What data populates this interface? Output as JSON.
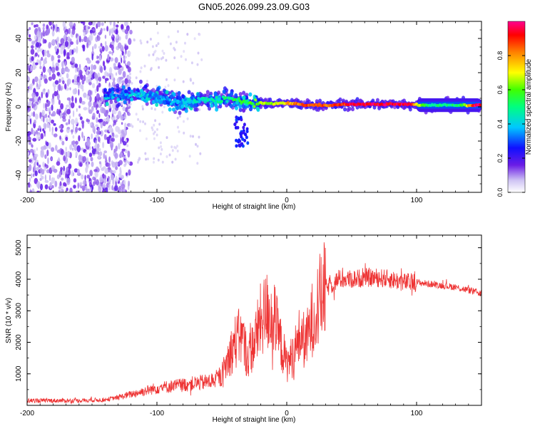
{
  "title": "GN05.2026.099.23.09.G03",
  "chart_data": [
    {
      "type": "heatmap",
      "name": "spectrogram",
      "xlabel": "Height of straight line (km)",
      "ylabel": "Frequency (Hz)",
      "xlim": [
        -200,
        150
      ],
      "ylim": [
        -50,
        50
      ],
      "xticks": [
        -200,
        -100,
        0,
        100
      ],
      "yticks": [
        -40,
        -20,
        0,
        20,
        40
      ],
      "colorbar": {
        "label": "Normalized spectral amplitude",
        "range": [
          0,
          1
        ],
        "ticks": [
          "0.0",
          "0.2",
          "0.4",
          "0.6",
          "0.8"
        ],
        "tick_values": [
          0.0,
          0.2,
          0.4,
          0.6,
          0.8
        ]
      },
      "ridge": [
        {
          "x": -135,
          "f": 7,
          "amp": 0.3
        },
        {
          "x": -125,
          "f": 7,
          "amp": 0.35
        },
        {
          "x": -115,
          "f": 7,
          "amp": 0.4
        },
        {
          "x": -105,
          "f": 6,
          "amp": 0.35
        },
        {
          "x": -95,
          "f": 5,
          "amp": 0.35
        },
        {
          "x": -85,
          "f": 3,
          "amp": 0.35
        },
        {
          "x": -75,
          "f": 3,
          "amp": 0.4
        },
        {
          "x": -65,
          "f": 4,
          "amp": 0.45
        },
        {
          "x": -55,
          "f": 4,
          "amp": 0.45
        },
        {
          "x": -45,
          "f": 5,
          "amp": 0.5
        },
        {
          "x": -35,
          "f": 3,
          "amp": 0.55
        },
        {
          "x": -25,
          "f": 2,
          "amp": 0.6
        },
        {
          "x": -15,
          "f": 2,
          "amp": 0.65
        },
        {
          "x": -5,
          "f": 2,
          "amp": 0.7
        },
        {
          "x": 5,
          "f": 2,
          "amp": 0.8
        },
        {
          "x": 15,
          "f": 1,
          "amp": 0.85
        },
        {
          "x": 25,
          "f": 1,
          "amp": 0.85
        },
        {
          "x": 35,
          "f": 1,
          "amp": 0.85
        },
        {
          "x": 45,
          "f": 1.5,
          "amp": 0.9
        },
        {
          "x": 55,
          "f": 1.5,
          "amp": 0.95
        },
        {
          "x": 65,
          "f": 1.5,
          "amp": 0.95
        },
        {
          "x": 75,
          "f": 1.5,
          "amp": 0.95
        },
        {
          "x": 85,
          "f": 1.5,
          "amp": 0.95
        },
        {
          "x": 95,
          "f": 1.5,
          "amp": 0.95
        },
        {
          "x": 105,
          "f": 1,
          "amp": 0.55
        },
        {
          "x": 115,
          "f": 1,
          "amp": 0.5
        },
        {
          "x": 125,
          "f": 1,
          "amp": 0.5
        },
        {
          "x": 135,
          "f": 1,
          "amp": 0.55
        },
        {
          "x": 145,
          "f": 1,
          "amp": 0.95
        }
      ]
    },
    {
      "type": "line",
      "name": "snr",
      "xlabel": "Height of straight line (km)",
      "ylabel": "SNR (10 * v/v)",
      "xlim": [
        -200,
        150
      ],
      "ylim": [
        0,
        5400
      ],
      "xticks": [
        -200,
        -100,
        0,
        100
      ],
      "yticks": [
        1000,
        2000,
        3000,
        4000,
        5000
      ],
      "color": "#ee3333",
      "series": [
        {
          "name": "SNR",
          "x": [
            -200,
            -180,
            -160,
            -140,
            -130,
            -120,
            -110,
            -100,
            -90,
            -80,
            -70,
            -60,
            -50,
            -45,
            -40,
            -35,
            -30,
            -25,
            -20,
            -15,
            -10,
            -5,
            0,
            5,
            10,
            15,
            20,
            25,
            30,
            40,
            50,
            60,
            70,
            80,
            90,
            100,
            110,
            120,
            130,
            140,
            150
          ],
          "y": [
            150,
            150,
            150,
            180,
            250,
            350,
            450,
            550,
            600,
            650,
            700,
            750,
            900,
            1500,
            2000,
            2200,
            1500,
            2000,
            2700,
            3000,
            2800,
            2000,
            1300,
            1600,
            2200,
            2000,
            2800,
            3300,
            3700,
            4000,
            4000,
            4050,
            4050,
            4000,
            3900,
            3900,
            3850,
            3800,
            3750,
            3650,
            3550
          ]
        }
      ]
    }
  ]
}
